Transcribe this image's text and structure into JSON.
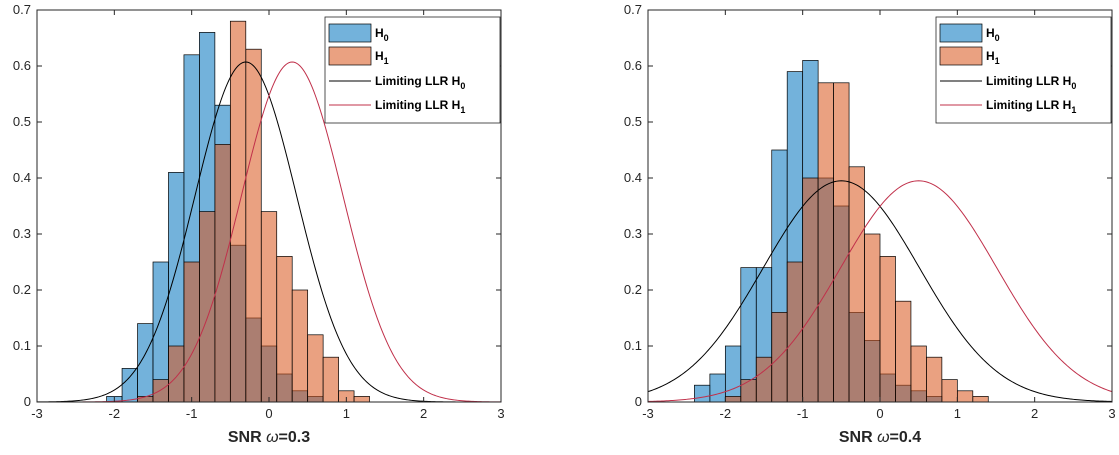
{
  "chart_data": [
    {
      "type": "bar",
      "xlabel_prefix": "SNR ",
      "xlabel_symbol": "ω",
      "xlabel_suffix": "=0.3",
      "xlim": [
        -3,
        3
      ],
      "ylim": [
        0,
        0.7
      ],
      "xticks": [
        "-3",
        "-2",
        "-1",
        "0",
        "1",
        "2",
        "3"
      ],
      "yticks": [
        "0",
        "0.1",
        "0.2",
        "0.3",
        "0.4",
        "0.5",
        "0.6",
        "0.7"
      ],
      "legend_position": "top-right",
      "bin_width": 0.2,
      "series": [
        {
          "name_main": "H",
          "name_sub": "0",
          "kind": "histogram",
          "color": "#0072BD",
          "bins": [
            {
              "x0": -2.1,
              "v": 0.01
            },
            {
              "x0": -1.9,
              "v": 0.06
            },
            {
              "x0": -1.7,
              "v": 0.14
            },
            {
              "x0": -1.5,
              "v": 0.25
            },
            {
              "x0": -1.3,
              "v": 0.41
            },
            {
              "x0": -1.1,
              "v": 0.62
            },
            {
              "x0": -0.9,
              "v": 0.66
            },
            {
              "x0": -0.7,
              "v": 0.53
            },
            {
              "x0": -0.5,
              "v": 0.28
            },
            {
              "x0": -0.3,
              "v": 0.15
            },
            {
              "x0": -0.1,
              "v": 0.1
            },
            {
              "x0": 0.1,
              "v": 0.05
            },
            {
              "x0": 0.3,
              "v": 0.02
            },
            {
              "x0": 0.5,
              "v": 0.01
            }
          ]
        },
        {
          "name_main": "H",
          "name_sub": "1",
          "kind": "histogram",
          "color": "#D95319",
          "bins": [
            {
              "x0": -1.7,
              "v": 0.01
            },
            {
              "x0": -1.5,
              "v": 0.04
            },
            {
              "x0": -1.3,
              "v": 0.1
            },
            {
              "x0": -1.1,
              "v": 0.25
            },
            {
              "x0": -0.9,
              "v": 0.34
            },
            {
              "x0": -0.7,
              "v": 0.46
            },
            {
              "x0": -0.5,
              "v": 0.68
            },
            {
              "x0": -0.3,
              "v": 0.63
            },
            {
              "x0": -0.1,
              "v": 0.34
            },
            {
              "x0": 0.1,
              "v": 0.26
            },
            {
              "x0": 0.3,
              "v": 0.2
            },
            {
              "x0": 0.5,
              "v": 0.12
            },
            {
              "x0": 0.7,
              "v": 0.08
            },
            {
              "x0": 0.9,
              "v": 0.02
            },
            {
              "x0": 1.1,
              "v": 0.01
            }
          ]
        },
        {
          "name_main": "Limiting LLR H",
          "name_sub": "0",
          "kind": "curve",
          "color": "#000000",
          "mean": -0.3,
          "sd": 0.657
        },
        {
          "name_main": "Limiting LLR H",
          "name_sub": "1",
          "kind": "curve",
          "color": "#C0304A",
          "mean": 0.3,
          "sd": 0.657
        }
      ]
    },
    {
      "type": "bar",
      "xlabel_prefix": "SNR ",
      "xlabel_symbol": "ω",
      "xlabel_suffix": "=0.4",
      "xlim": [
        -3,
        3
      ],
      "ylim": [
        0,
        0.7
      ],
      "xticks": [
        "-3",
        "-2",
        "-1",
        "0",
        "1",
        "2",
        "3"
      ],
      "yticks": [
        "0",
        "0.1",
        "0.2",
        "0.3",
        "0.4",
        "0.5",
        "0.6",
        "0.7"
      ],
      "legend_position": "top-right",
      "bin_width": 0.2,
      "series": [
        {
          "name_main": "H",
          "name_sub": "0",
          "kind": "histogram",
          "color": "#0072BD",
          "bins": [
            {
              "x0": -2.4,
              "v": 0.03
            },
            {
              "x0": -2.2,
              "v": 0.05
            },
            {
              "x0": -2.0,
              "v": 0.1
            },
            {
              "x0": -1.8,
              "v": 0.24
            },
            {
              "x0": -1.6,
              "v": 0.24
            },
            {
              "x0": -1.4,
              "v": 0.45
            },
            {
              "x0": -1.2,
              "v": 0.59
            },
            {
              "x0": -1.0,
              "v": 0.61
            },
            {
              "x0": -0.8,
              "v": 0.4
            },
            {
              "x0": -0.6,
              "v": 0.35
            },
            {
              "x0": -0.4,
              "v": 0.16
            },
            {
              "x0": -0.2,
              "v": 0.11
            },
            {
              "x0": 0.0,
              "v": 0.05
            },
            {
              "x0": 0.2,
              "v": 0.03
            },
            {
              "x0": 0.4,
              "v": 0.02
            },
            {
              "x0": 0.6,
              "v": 0.01
            }
          ]
        },
        {
          "name_main": "H",
          "name_sub": "1",
          "kind": "histogram",
          "color": "#D95319",
          "bins": [
            {
              "x0": -2.0,
              "v": 0.01
            },
            {
              "x0": -1.8,
              "v": 0.04
            },
            {
              "x0": -1.6,
              "v": 0.08
            },
            {
              "x0": -1.4,
              "v": 0.16
            },
            {
              "x0": -1.2,
              "v": 0.25
            },
            {
              "x0": -1.0,
              "v": 0.4
            },
            {
              "x0": -0.8,
              "v": 0.57
            },
            {
              "x0": -0.6,
              "v": 0.57
            },
            {
              "x0": -0.4,
              "v": 0.42
            },
            {
              "x0": -0.2,
              "v": 0.3
            },
            {
              "x0": 0.0,
              "v": 0.26
            },
            {
              "x0": 0.2,
              "v": 0.18
            },
            {
              "x0": 0.4,
              "v": 0.1
            },
            {
              "x0": 0.6,
              "v": 0.08
            },
            {
              "x0": 0.8,
              "v": 0.04
            },
            {
              "x0": 1.0,
              "v": 0.02
            },
            {
              "x0": 1.2,
              "v": 0.01
            }
          ]
        },
        {
          "name_main": "Limiting LLR H",
          "name_sub": "0",
          "kind": "curve",
          "color": "#000000",
          "mean": -0.5,
          "sd": 1.01
        },
        {
          "name_main": "Limiting LLR H",
          "name_sub": "1",
          "kind": "curve",
          "color": "#C0304A",
          "mean": 0.5,
          "sd": 1.01
        }
      ]
    }
  ]
}
